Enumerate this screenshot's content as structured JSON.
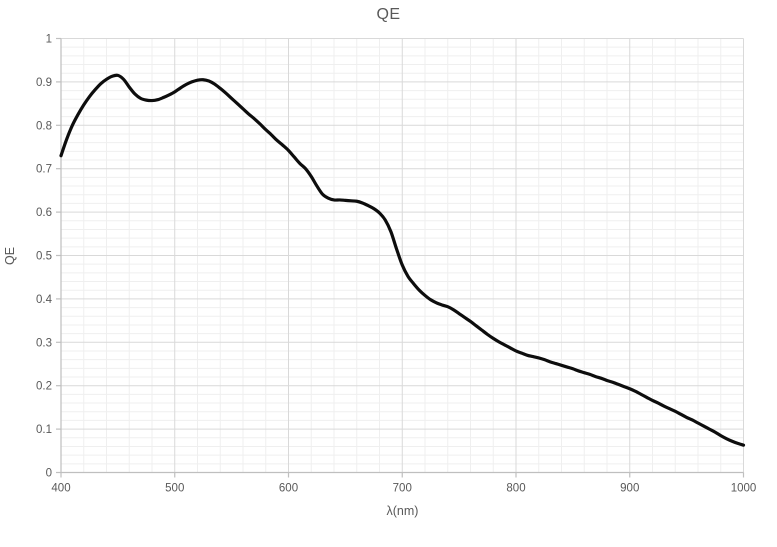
{
  "chart_data": {
    "type": "line",
    "title": "QE",
    "xlabel": "λ(nm)",
    "ylabel": "QE",
    "legend": "none",
    "grid": "major+minor",
    "xlim": [
      400,
      1000
    ],
    "ylim": [
      0,
      1
    ],
    "x_major_step": 100,
    "x_minor_step": 20,
    "y_major_step": 0.1,
    "y_minor_step": 0.02,
    "x_tick_labels": [
      "400",
      "500",
      "600",
      "700",
      "800",
      "900",
      "1000"
    ],
    "y_tick_labels": [
      "0",
      "0.1",
      "0.2",
      "0.3",
      "0.4",
      "0.5",
      "0.6",
      "0.7",
      "0.8",
      "0.9",
      "1"
    ],
    "series": [
      {
        "name": "QE",
        "x": [
          400,
          405,
          410,
          415,
          420,
          425,
          430,
          435,
          440,
          445,
          450,
          455,
          460,
          465,
          470,
          475,
          480,
          485,
          490,
          495,
          500,
          505,
          510,
          515,
          520,
          525,
          530,
          535,
          540,
          545,
          550,
          555,
          560,
          565,
          570,
          575,
          580,
          585,
          590,
          595,
          600,
          605,
          610,
          615,
          620,
          625,
          630,
          635,
          640,
          645,
          650,
          655,
          660,
          665,
          670,
          675,
          680,
          685,
          690,
          695,
          700,
          705,
          710,
          715,
          720,
          725,
          730,
          735,
          740,
          745,
          750,
          755,
          760,
          765,
          770,
          775,
          780,
          785,
          790,
          795,
          800,
          805,
          810,
          815,
          820,
          825,
          830,
          835,
          840,
          845,
          850,
          855,
          860,
          865,
          870,
          875,
          880,
          885,
          890,
          895,
          900,
          905,
          910,
          915,
          920,
          925,
          930,
          935,
          940,
          945,
          950,
          955,
          960,
          965,
          970,
          975,
          980,
          985,
          990,
          995,
          1000
        ],
        "y": [
          0.73,
          0.768,
          0.8,
          0.825,
          0.847,
          0.866,
          0.882,
          0.896,
          0.906,
          0.913,
          0.915,
          0.906,
          0.888,
          0.872,
          0.862,
          0.858,
          0.857,
          0.859,
          0.864,
          0.87,
          0.877,
          0.886,
          0.894,
          0.9,
          0.904,
          0.905,
          0.902,
          0.895,
          0.885,
          0.874,
          0.862,
          0.85,
          0.838,
          0.826,
          0.815,
          0.803,
          0.79,
          0.778,
          0.765,
          0.754,
          0.742,
          0.727,
          0.712,
          0.7,
          0.682,
          0.66,
          0.641,
          0.632,
          0.628,
          0.628,
          0.627,
          0.626,
          0.625,
          0.621,
          0.615,
          0.608,
          0.598,
          0.582,
          0.555,
          0.515,
          0.478,
          0.452,
          0.435,
          0.42,
          0.408,
          0.398,
          0.391,
          0.386,
          0.382,
          0.375,
          0.366,
          0.357,
          0.348,
          0.338,
          0.328,
          0.318,
          0.309,
          0.301,
          0.294,
          0.287,
          0.28,
          0.275,
          0.27,
          0.267,
          0.264,
          0.26,
          0.255,
          0.251,
          0.247,
          0.243,
          0.239,
          0.234,
          0.23,
          0.226,
          0.221,
          0.217,
          0.212,
          0.208,
          0.203,
          0.198,
          0.193,
          0.187,
          0.18,
          0.173,
          0.166,
          0.16,
          0.153,
          0.147,
          0.141,
          0.134,
          0.127,
          0.121,
          0.114,
          0.107,
          0.1,
          0.093,
          0.085,
          0.078,
          0.072,
          0.067,
          0.063
        ]
      }
    ],
    "colors": {
      "line": "#0d0d0d",
      "grid_major": "#d9d9d9",
      "grid_minor": "#efefef",
      "axis": "#bfbfbf",
      "text": "#595959",
      "background": "#ffffff"
    }
  }
}
